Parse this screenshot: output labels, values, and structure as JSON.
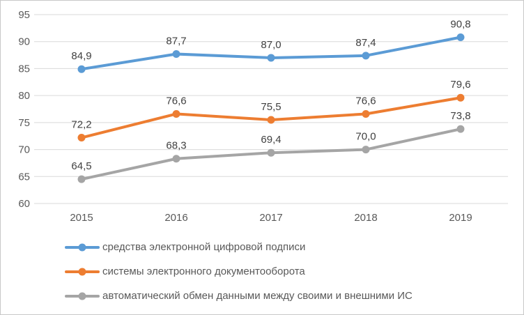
{
  "chart_data": {
    "type": "line",
    "title": "",
    "xlabel": "",
    "ylabel": "",
    "categories": [
      "2015",
      "2016",
      "2017",
      "2018",
      "2019"
    ],
    "series": [
      {
        "name": "средства электронной цифровой подписи",
        "color": "#5B9BD5",
        "values": [
          84.9,
          87.7,
          87.0,
          87.4,
          90.8
        ],
        "point_labels": [
          "84,9",
          "87,7",
          "87,0",
          "87,4",
          "90,8"
        ]
      },
      {
        "name": "системы электронного документооборота",
        "color": "#ED7D31",
        "values": [
          72.2,
          76.6,
          75.5,
          76.6,
          79.6
        ],
        "point_labels": [
          "72,2",
          "76,6",
          "75,5",
          "76,6",
          "79,6"
        ]
      },
      {
        "name": "автоматический обмен данными между своими и внешними ИС",
        "color": "#A5A5A5",
        "values": [
          64.5,
          68.3,
          69.4,
          70.0,
          73.8
        ],
        "point_labels": [
          "64,5",
          "68,3",
          "69,4",
          "70,0",
          "73,8"
        ]
      }
    ],
    "y_axis": {
      "min": 60,
      "max": 95,
      "step": 5,
      "tick_labels_top_to_bottom": [
        "95",
        "90",
        "85",
        "80",
        "75",
        "70",
        "65",
        "60"
      ]
    },
    "grid": true,
    "legend_position": "bottom-left",
    "marker": "circle"
  },
  "colors": {
    "gridline": "#D9D9D9",
    "axis_text": "#595959",
    "data_label_text": "#404040",
    "frame_border": "#C8C8C8",
    "background": "#FFFFFF"
  }
}
